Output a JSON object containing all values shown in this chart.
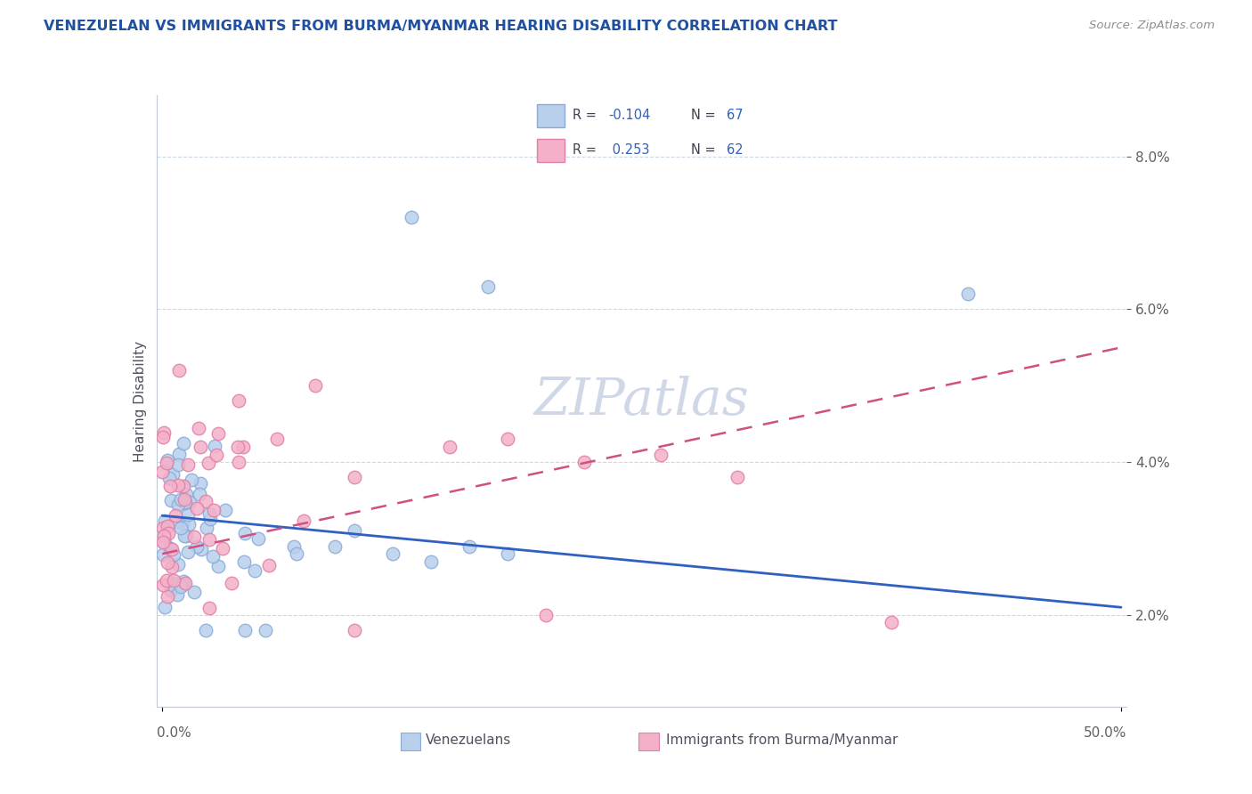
{
  "title": "VENEZUELAN VS IMMIGRANTS FROM BURMA/MYANMAR HEARING DISABILITY CORRELATION CHART",
  "source": "Source: ZipAtlas.com",
  "ylabel": "Hearing Disability",
  "venezuelan_R": -0.104,
  "venezuelan_N": 67,
  "burma_R": 0.253,
  "burma_N": 62,
  "blue_scatter_face": "#b8d0ec",
  "blue_scatter_edge": "#8aaad8",
  "pink_scatter_face": "#f4b0c8",
  "pink_scatter_edge": "#e080a8",
  "blue_line_color": "#3060c0",
  "pink_line_color": "#d05080",
  "title_color": "#2050a0",
  "source_color": "#909090",
  "ylabel_color": "#505060",
  "tick_color": "#606060",
  "grid_color": "#c8d4e0",
  "watermark_color": "#d0d8e8",
  "legend_border": "#c0c8d8",
  "xmin": 0.0,
  "xmax": 0.5,
  "ymin": 0.008,
  "ymax": 0.088,
  "xtick_positions": [
    0.0,
    0.5
  ],
  "xtick_labels": [
    "0.0%",
    "50.0%"
  ],
  "ytick_positions": [
    0.02,
    0.04,
    0.06,
    0.08
  ],
  "ytick_labels": [
    "2.0%",
    "4.0%",
    "6.0%",
    "8.0%"
  ],
  "ven_line_x0": 0.0,
  "ven_line_x1": 0.5,
  "ven_line_y0": 0.033,
  "ven_line_y1": 0.021,
  "bur_line_x0": 0.0,
  "bur_line_x1": 0.5,
  "bur_line_y0": 0.028,
  "bur_line_y1": 0.055,
  "legend_label_blue": "Venezuelans",
  "legend_label_pink": "Immigrants from Burma/Myanmar",
  "watermark": "ZIPatlas"
}
